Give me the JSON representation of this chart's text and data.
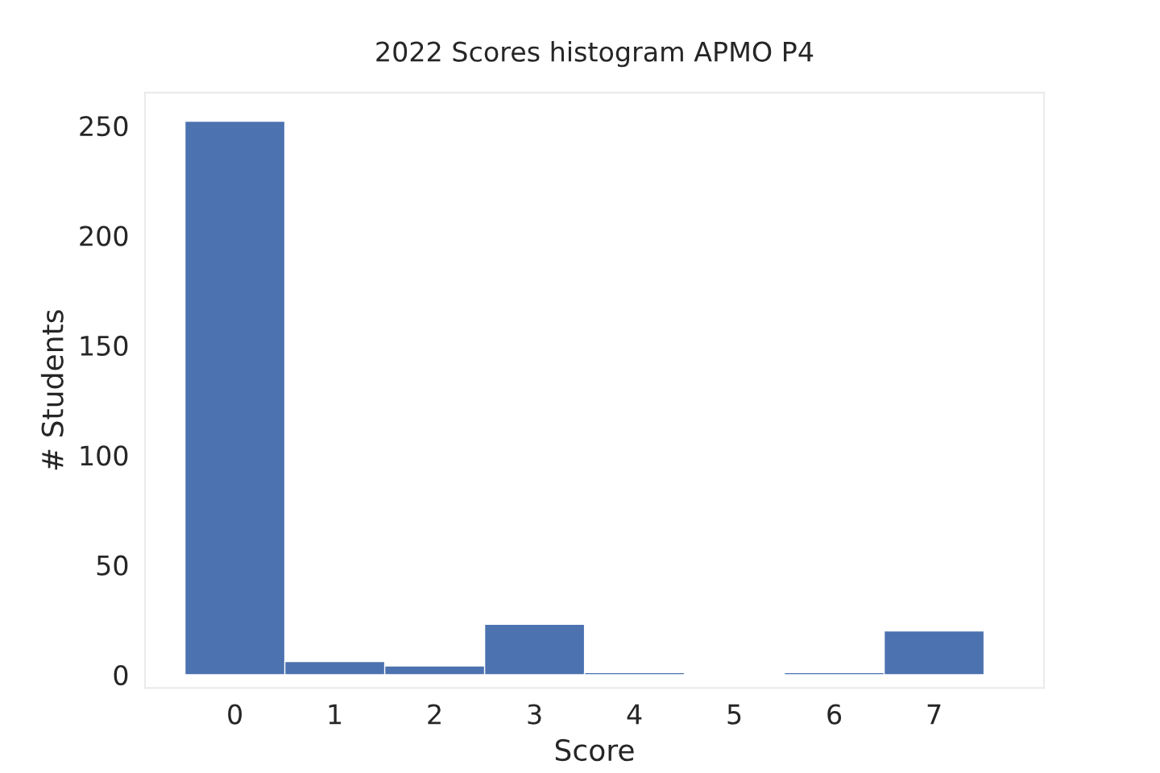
{
  "chart_data": {
    "type": "histogram",
    "title": "2022 Scores histogram APMO P4",
    "xlabel": "Score",
    "ylabel": "# Students",
    "bins": [
      -0.5,
      0.5,
      1.5,
      2.5,
      3.5,
      4.5,
      5.5,
      6.5,
      7.5
    ],
    "values": [
      252,
      6,
      4,
      23,
      1,
      0,
      1,
      20
    ],
    "color": "#4c72b0",
    "xlim": [
      -0.9,
      8.1
    ],
    "xticks": [
      0,
      1,
      2,
      3,
      4,
      5,
      6,
      7
    ],
    "ylim": [
      -6,
      265
    ],
    "yticks": [
      0,
      50,
      100,
      150,
      200,
      250
    ],
    "grid": false
  }
}
